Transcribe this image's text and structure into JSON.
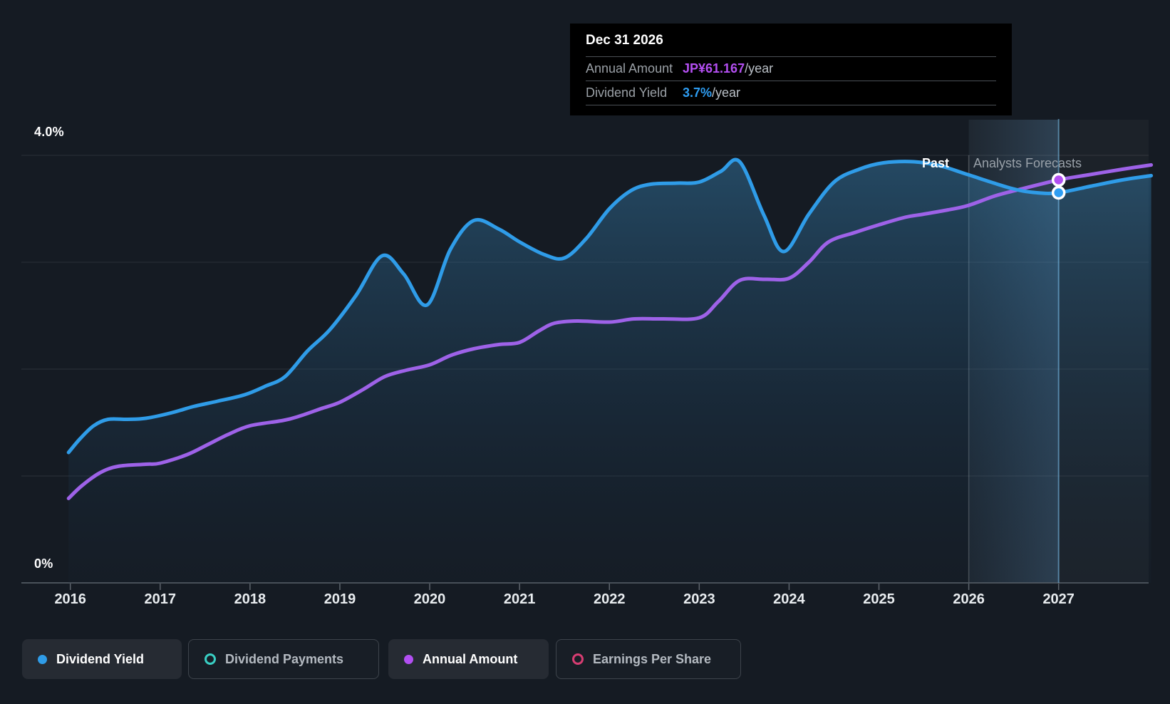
{
  "y_axis": {
    "top_label": "4.0%",
    "bottom_label": "0%"
  },
  "x_axis": {
    "years": [
      "2016",
      "2017",
      "2018",
      "2019",
      "2020",
      "2021",
      "2022",
      "2023",
      "2024",
      "2025",
      "2026",
      "2027"
    ]
  },
  "annotations": {
    "past": "Past",
    "forecast": "Analysts Forecasts"
  },
  "tooltip": {
    "date": "Dec 31 2026",
    "rows": [
      {
        "label": "Annual Amount",
        "value": "JP¥61.167",
        "suffix": "/year",
        "value_color": "#b44ff2"
      },
      {
        "label": "Dividend Yield",
        "value": "3.7%",
        "suffix": "/year",
        "value_color": "#2e9df2"
      }
    ]
  },
  "legend": [
    {
      "label": "Dividend Yield",
      "color": "#2f9ce8",
      "swatch": "filled",
      "active": true
    },
    {
      "label": "Dividend Payments",
      "color": "#39cfc4",
      "swatch": "ring",
      "active": false
    },
    {
      "label": "Annual Amount",
      "color": "#b24ff2",
      "swatch": "filled",
      "active": true
    },
    {
      "label": "Earnings Per Share",
      "color": "#d63d72",
      "swatch": "ring",
      "active": false
    }
  ],
  "colors": {
    "background": "#151b23",
    "grid": "rgba(255,255,255,0.10)",
    "axis": "#5d646c",
    "blue_line": "#2f9ce8",
    "purple_line": "#9e62e8",
    "crosshair": "rgba(125,195,240,0.55)",
    "divider": "rgba(255,255,255,0.22)",
    "marker_blue": "#2e9df2",
    "marker_purple": "#b24ff2"
  },
  "chart_data": {
    "type": "area",
    "title": "",
    "x_range": [
      2015.98,
      2028.03
    ],
    "x_ticks": [
      2016,
      2017,
      2018,
      2019,
      2020,
      2021,
      2022,
      2023,
      2024,
      2025,
      2026,
      2027
    ],
    "y_axis": {
      "min": 0,
      "max": 4.0,
      "unit": "%",
      "visible_tick_labels": [
        "4.0%",
        "0%"
      ],
      "gridlines_pct": [
        0,
        1,
        2,
        3,
        4
      ]
    },
    "grid": "horizontal-only",
    "legend_position": "bottom-left",
    "past_forecast_divider_year": 2026.0,
    "hover_highlight_band_years": [
      2026.0,
      2027.0
    ],
    "hover_point": {
      "date": "Dec 31 2026",
      "x_year": 2027.0,
      "annual_amount": "JP¥61.167/year",
      "dividend_yield": "3.7%/year"
    },
    "series": [
      {
        "name": "Dividend Yield",
        "type": "line",
        "unit": "%",
        "color": "#2f9ce8",
        "area_fill": true,
        "visible": true,
        "points": [
          [
            2015.98,
            1.22
          ],
          [
            2016.11,
            1.35
          ],
          [
            2016.26,
            1.47
          ],
          [
            2016.42,
            1.53
          ],
          [
            2016.64,
            1.53
          ],
          [
            2016.84,
            1.54
          ],
          [
            2017.12,
            1.59
          ],
          [
            2017.37,
            1.65
          ],
          [
            2017.64,
            1.7
          ],
          [
            2017.94,
            1.76
          ],
          [
            2018.17,
            1.84
          ],
          [
            2018.39,
            1.93
          ],
          [
            2018.64,
            2.17
          ],
          [
            2018.89,
            2.37
          ],
          [
            2019.18,
            2.69
          ],
          [
            2019.47,
            3.06
          ],
          [
            2019.71,
            2.89
          ],
          [
            2019.97,
            2.6
          ],
          [
            2020.23,
            3.12
          ],
          [
            2020.49,
            3.39
          ],
          [
            2020.77,
            3.31
          ],
          [
            2021.0,
            3.19
          ],
          [
            2021.28,
            3.07
          ],
          [
            2021.5,
            3.04
          ],
          [
            2021.74,
            3.22
          ],
          [
            2022.0,
            3.5
          ],
          [
            2022.24,
            3.67
          ],
          [
            2022.46,
            3.73
          ],
          [
            2022.75,
            3.74
          ],
          [
            2023.0,
            3.75
          ],
          [
            2023.24,
            3.85
          ],
          [
            2023.45,
            3.94
          ],
          [
            2023.72,
            3.44
          ],
          [
            2023.94,
            3.1
          ],
          [
            2024.22,
            3.45
          ],
          [
            2024.5,
            3.75
          ],
          [
            2024.78,
            3.87
          ],
          [
            2025.05,
            3.93
          ],
          [
            2025.39,
            3.94
          ],
          [
            2025.69,
            3.9
          ],
          [
            2025.99,
            3.82
          ],
          [
            2026.48,
            3.69
          ],
          [
            2026.76,
            3.65
          ],
          [
            2027.0,
            3.65
          ],
          [
            2027.35,
            3.71
          ],
          [
            2027.71,
            3.77
          ],
          [
            2028.03,
            3.81
          ]
        ]
      },
      {
        "name": "Annual Amount",
        "type": "line",
        "unit": "JP¥/year",
        "color": "#9e62e8",
        "area_fill": false,
        "visible": true,
        "note": "plotted on unlabeled right-hand scale; y values below are chart positions in %-axis units",
        "points": [
          [
            2015.98,
            0.79
          ],
          [
            2016.13,
            0.91
          ],
          [
            2016.33,
            1.03
          ],
          [
            2016.53,
            1.09
          ],
          [
            2016.84,
            1.11
          ],
          [
            2017.0,
            1.12
          ],
          [
            2017.3,
            1.2
          ],
          [
            2017.52,
            1.29
          ],
          [
            2017.76,
            1.39
          ],
          [
            2018.0,
            1.47
          ],
          [
            2018.37,
            1.52
          ],
          [
            2018.55,
            1.56
          ],
          [
            2018.79,
            1.63
          ],
          [
            2019.0,
            1.69
          ],
          [
            2019.26,
            1.81
          ],
          [
            2019.5,
            1.93
          ],
          [
            2019.74,
            1.99
          ],
          [
            2020.0,
            2.04
          ],
          [
            2020.24,
            2.13
          ],
          [
            2020.49,
            2.19
          ],
          [
            2020.77,
            2.23
          ],
          [
            2021.0,
            2.25
          ],
          [
            2021.22,
            2.36
          ],
          [
            2021.39,
            2.43
          ],
          [
            2021.64,
            2.45
          ],
          [
            2022.0,
            2.44
          ],
          [
            2022.28,
            2.47
          ],
          [
            2022.59,
            2.47
          ],
          [
            2023.0,
            2.48
          ],
          [
            2023.21,
            2.63
          ],
          [
            2023.45,
            2.83
          ],
          [
            2023.74,
            2.84
          ],
          [
            2024.0,
            2.85
          ],
          [
            2024.22,
            3.0
          ],
          [
            2024.44,
            3.19
          ],
          [
            2024.74,
            3.28
          ],
          [
            2025.0,
            3.35
          ],
          [
            2025.29,
            3.42
          ],
          [
            2025.5,
            3.45
          ],
          [
            2025.77,
            3.49
          ],
          [
            2025.99,
            3.53
          ],
          [
            2026.29,
            3.62
          ],
          [
            2026.56,
            3.68
          ],
          [
            2027.0,
            3.77
          ],
          [
            2027.35,
            3.82
          ],
          [
            2027.71,
            3.87
          ],
          [
            2028.03,
            3.91
          ]
        ]
      },
      {
        "name": "Dividend Payments",
        "type": "line",
        "visible": false,
        "points": []
      },
      {
        "name": "Earnings Per Share",
        "type": "line",
        "visible": false,
        "points": []
      }
    ]
  }
}
